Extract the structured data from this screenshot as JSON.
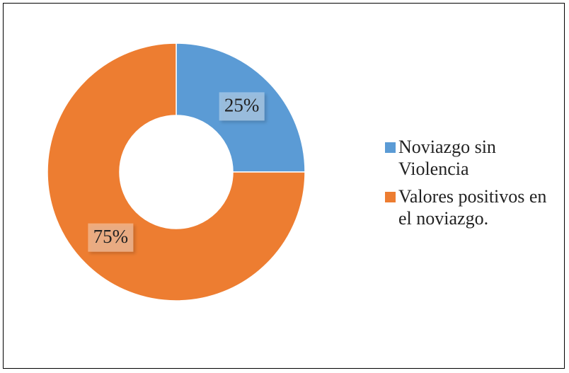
{
  "chart_data": {
    "type": "donut",
    "categories": [
      "Noviazgo sin Violencia",
      "Valores positivos en el noviazgo."
    ],
    "values": [
      25,
      75
    ],
    "value_labels": [
      "25%",
      "75%"
    ],
    "colors": [
      "#5b9bd5",
      "#ed7d31"
    ],
    "legend": "right"
  }
}
